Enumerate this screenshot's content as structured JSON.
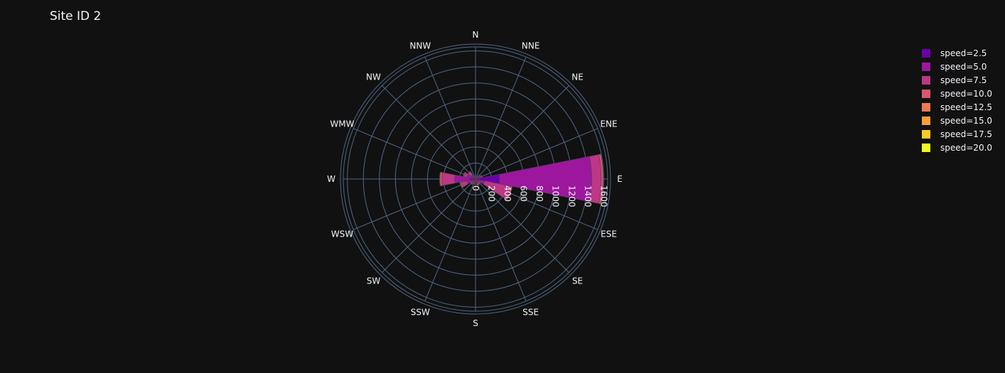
{
  "chart_data": {
    "type": "barpolar",
    "title": "Site ID 2",
    "directions": [
      "N",
      "NNE",
      "NE",
      "ENE",
      "E",
      "ESE",
      "SE",
      "SSE",
      "S",
      "SSW",
      "SW",
      "WSW",
      "W",
      "WMW",
      "NW",
      "NNW"
    ],
    "radial_ticks": [
      "0",
      "200",
      "400",
      "600",
      "800",
      "1000",
      "1200",
      "1400",
      "1600"
    ],
    "radial_range": [
      0,
      1650
    ],
    "grid": true,
    "legend_position": "top-right",
    "series": [
      {
        "name": "speed=2.5",
        "color": "#6a00a8",
        "values": [
          10,
          10,
          20,
          40,
          300,
          40,
          20,
          15,
          10,
          15,
          20,
          30,
          70,
          30,
          15,
          10
        ]
      },
      {
        "name": "speed=5.0",
        "color": "#9c179e",
        "values": [
          15,
          20,
          25,
          40,
          1150,
          80,
          30,
          40,
          20,
          35,
          40,
          80,
          190,
          80,
          50,
          20
        ]
      },
      {
        "name": "speed=7.5",
        "color": "#bd3786",
        "values": [
          10,
          10,
          10,
          10,
          120,
          330,
          20,
          20,
          10,
          20,
          20,
          70,
          160,
          40,
          50,
          10
        ]
      },
      {
        "name": "speed=10.0",
        "color": "#d8576b",
        "values": [
          0,
          0,
          0,
          0,
          25,
          20,
          10,
          10,
          5,
          5,
          5,
          15,
          25,
          10,
          5,
          0
        ]
      },
      {
        "name": "speed=12.5",
        "color": "#ed7953",
        "values": [
          0,
          0,
          0,
          0,
          0,
          0,
          0,
          0,
          0,
          0,
          0,
          0,
          5,
          0,
          0,
          0
        ]
      },
      {
        "name": "speed=15.0",
        "color": "#fb9f3a",
        "values": [
          0,
          0,
          0,
          0,
          0,
          0,
          0,
          0,
          0,
          0,
          0,
          0,
          0,
          0,
          0,
          0
        ]
      },
      {
        "name": "speed=17.5",
        "color": "#fdca26",
        "values": [
          0,
          0,
          0,
          0,
          0,
          0,
          0,
          0,
          0,
          0,
          0,
          0,
          0,
          0,
          0,
          0
        ]
      },
      {
        "name": "speed=20.0",
        "color": "#f0f921",
        "values": [
          0,
          0,
          0,
          0,
          0,
          0,
          0,
          0,
          0,
          0,
          0,
          0,
          0,
          0,
          0,
          0
        ]
      }
    ]
  }
}
